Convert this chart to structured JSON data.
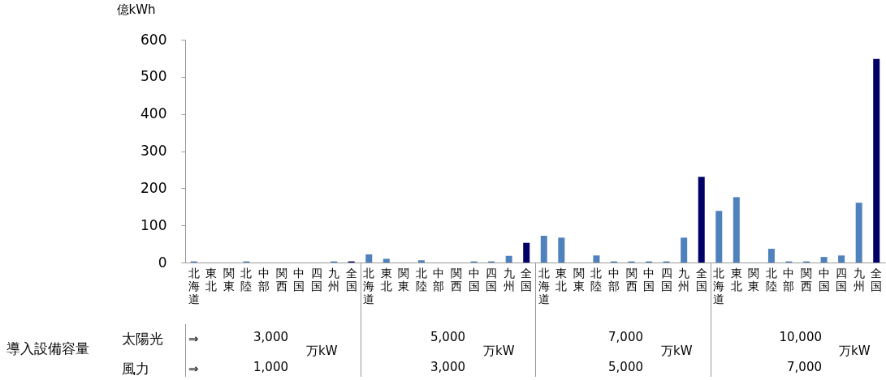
{
  "chart_data": {
    "type": "bar",
    "ylabel": "億kWh",
    "categories": [
      "北海道",
      "東北",
      "関東",
      "北陸",
      "中部",
      "関西",
      "中国",
      "四国",
      "九州",
      "全国",
      "北海道",
      "東北",
      "関東",
      "北陸",
      "中部",
      "関西",
      "中国",
      "四国",
      "九州",
      "全国",
      "北海道",
      "東北",
      "関東",
      "北陸",
      "中部",
      "関西",
      "中国",
      "四国",
      "九州",
      "全国",
      "北海道",
      "東北",
      "関東",
      "北陸",
      "中部",
      "関西",
      "中国",
      "四国",
      "九州",
      "全国"
    ],
    "values": [
      3,
      0,
      0,
      3,
      0,
      0,
      0,
      0,
      3,
      3,
      22,
      10,
      0,
      6,
      0,
      0,
      3,
      3,
      18,
      53,
      72,
      67,
      0,
      19,
      3,
      3,
      3,
      3,
      67,
      231,
      139,
      176,
      0,
      37,
      3,
      3,
      15,
      19,
      161,
      548
    ],
    "colors": [
      "#4f81bd",
      "#4f81bd",
      "#4f81bd",
      "#4f81bd",
      "#4f81bd",
      "#4f81bd",
      "#4f81bd",
      "#4f81bd",
      "#4f81bd",
      "#000066",
      "#4f81bd",
      "#4f81bd",
      "#4f81bd",
      "#4f81bd",
      "#4f81bd",
      "#4f81bd",
      "#4f81bd",
      "#4f81bd",
      "#4f81bd",
      "#000066",
      "#4f81bd",
      "#4f81bd",
      "#4f81bd",
      "#4f81bd",
      "#4f81bd",
      "#4f81bd",
      "#4f81bd",
      "#4f81bd",
      "#4f81bd",
      "#000066",
      "#4f81bd",
      "#4f81bd",
      "#4f81bd",
      "#4f81bd",
      "#4f81bd",
      "#4f81bd",
      "#4f81bd",
      "#4f81bd",
      "#4f81bd",
      "#000066"
    ],
    "ylim": [
      0,
      600
    ],
    "yticks": [
      0,
      100,
      200,
      300,
      400,
      500,
      600
    ],
    "grid": false,
    "legend": false,
    "annotations": [
      "導入設備容量",
      "太陽光",
      "風力",
      "⇒",
      "⇒",
      "3,000",
      "1,000",
      "万kW",
      "5,000",
      "3,000",
      "万kW",
      "7,000",
      "5,000",
      "万kW",
      "10,000",
      "7,000",
      "万kW"
    ]
  }
}
